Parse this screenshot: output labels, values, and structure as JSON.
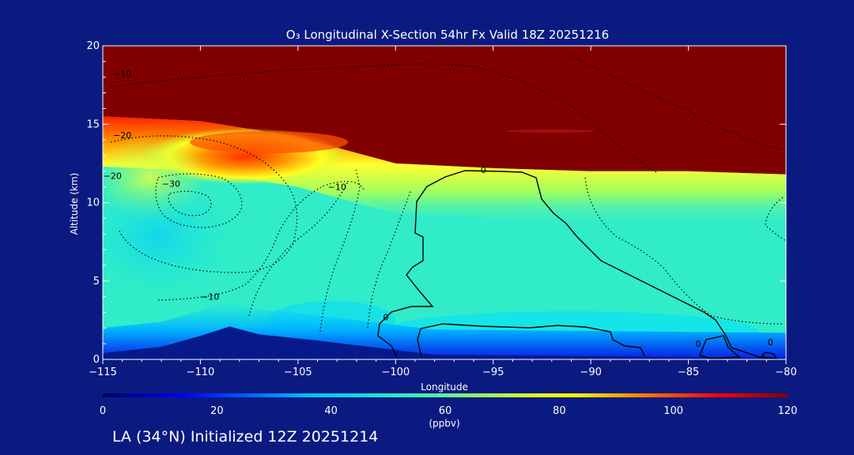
{
  "chart_data": {
    "type": "heatmap",
    "title": "O₃ Longitudinal X-Section 54hr  Fx Valid 18Z 20251216",
    "xlabel": "Longitude",
    "ylabel": "Altitude (km)",
    "xlim": [
      -115,
      -80
    ],
    "ylim": [
      0,
      20
    ],
    "x_ticks": [
      -115,
      -110,
      -105,
      -100,
      -95,
      -90,
      -85,
      -80
    ],
    "x_tick_labels": [
      "−115",
      "−110",
      "−105",
      "−100",
      "−95",
      "−90",
      "−85",
      "−80"
    ],
    "y_ticks": [
      0,
      5,
      10,
      15,
      20
    ],
    "y_tick_labels": [
      "0",
      "5",
      "10",
      "15",
      "20"
    ],
    "colorbar": {
      "min": 0,
      "max": 120,
      "ticks": [
        0,
        20,
        40,
        60,
        80,
        100,
        120
      ],
      "tick_labels": [
        "0",
        "20",
        "40",
        "60",
        "80",
        "100",
        "120"
      ],
      "unit_label": "(ppbv)",
      "colors": [
        "#000060",
        "#0000ff",
        "#00c0ff",
        "#30f0c0",
        "#c0ff40",
        "#ffff00",
        "#ff7000",
        "#ff0000",
        "#800000"
      ]
    },
    "colors": {
      "background": "#0b1a80",
      "stratosphere": "#800000",
      "troposphere": "#30ecc8",
      "boundary_layer": "#0a1ae6",
      "terrain": "#071a8c"
    },
    "tropopause_altitude_km": [
      {
        "lon": -115,
        "alt": 15.5
      },
      {
        "lon": -110,
        "alt": 15.2
      },
      {
        "lon": -105,
        "alt": 14.2
      },
      {
        "lon": -103,
        "alt": 13.5
      },
      {
        "lon": -100,
        "alt": 12.5
      },
      {
        "lon": -95,
        "alt": 12.2
      },
      {
        "lon": -90,
        "alt": 12.0
      },
      {
        "lon": -85,
        "alt": 12.0
      },
      {
        "lon": -80,
        "alt": 11.8
      }
    ],
    "terrain_altitude_km": [
      {
        "lon": -115,
        "alt": 0.4
      },
      {
        "lon": -112,
        "alt": 0.8
      },
      {
        "lon": -110,
        "alt": 1.5
      },
      {
        "lon": -108.5,
        "alt": 2.1
      },
      {
        "lon": -107,
        "alt": 1.6
      },
      {
        "lon": -104,
        "alt": 1.2
      },
      {
        "lon": -100,
        "alt": 0.6
      },
      {
        "lon": -98,
        "alt": 0.3
      },
      {
        "lon": -80,
        "alt": 0.1
      }
    ],
    "contour_labels": [
      {
        "text": "−10",
        "lon": -114,
        "alt": 18.0
      },
      {
        "text": "−20",
        "lon": -114,
        "alt": 14.1
      },
      {
        "text": "−20",
        "lon": -114.5,
        "alt": 11.5
      },
      {
        "text": "−30",
        "lon": -111.5,
        "alt": 11.0
      },
      {
        "text": "−10",
        "lon": -103,
        "alt": 10.8
      },
      {
        "text": "−10",
        "lon": -109.5,
        "alt": 3.8
      },
      {
        "text": "0",
        "lon": -95.5,
        "alt": 11.9
      },
      {
        "text": "0",
        "lon": -100.5,
        "alt": 2.5
      },
      {
        "text": "0",
        "lon": -80.8,
        "alt": 0.9
      },
      {
        "text": "0",
        "lon": -84.5,
        "alt": 0.8
      }
    ]
  },
  "footer": "LA (34°N) Initialized 12Z 20251214"
}
